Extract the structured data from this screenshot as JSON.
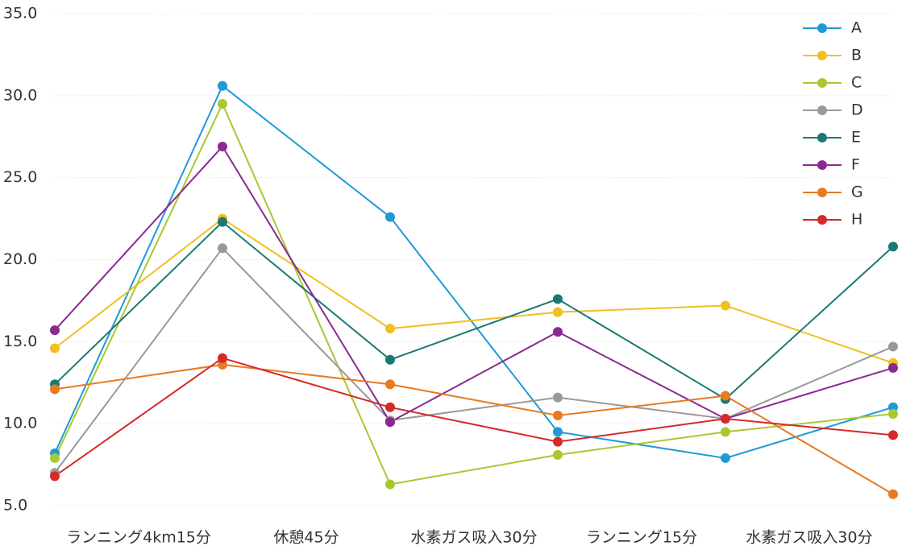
{
  "chart_data": {
    "type": "line",
    "xlim": [
      0,
      5
    ],
    "xticks": [
      {
        "value": 0.5,
        "label": "ランニング4km15分"
      },
      {
        "value": 1.5,
        "label": "休憩45分"
      },
      {
        "value": 2.5,
        "label": "水素ガス吸入30分"
      },
      {
        "value": 3.5,
        "label": "ランニング15分"
      },
      {
        "value": 4.5,
        "label": "水素ガス吸入30分"
      }
    ],
    "x": [
      0,
      1,
      2,
      3,
      4,
      5
    ],
    "ylim": [
      5,
      35
    ],
    "yticks": [
      {
        "value": 5,
        "label": "5.0"
      },
      {
        "value": 10,
        "label": "10.0"
      },
      {
        "value": 15,
        "label": "15.0"
      },
      {
        "value": 20,
        "label": "20.0"
      },
      {
        "value": 25,
        "label": "25.0"
      },
      {
        "value": 30,
        "label": "30.0"
      },
      {
        "value": 35,
        "label": "35.0"
      }
    ],
    "grid": true,
    "legend": "top-right",
    "series": [
      {
        "name": "A",
        "color": "#1e9ad6",
        "values": [
          8.2,
          30.6,
          22.6,
          9.5,
          7.9,
          11.0
        ]
      },
      {
        "name": "B",
        "color": "#f0c020",
        "values": [
          14.6,
          22.5,
          15.8,
          16.8,
          17.2,
          13.7
        ]
      },
      {
        "name": "C",
        "color": "#a8c830",
        "values": [
          7.9,
          29.5,
          6.3,
          8.1,
          9.5,
          10.6
        ]
      },
      {
        "name": "D",
        "color": "#999999",
        "values": [
          7.0,
          20.7,
          10.2,
          11.6,
          10.3,
          14.7
        ]
      },
      {
        "name": "E",
        "color": "#1a7a72",
        "values": [
          12.4,
          22.3,
          13.9,
          17.6,
          11.5,
          20.8
        ]
      },
      {
        "name": "F",
        "color": "#8a2a90",
        "values": [
          15.7,
          26.9,
          10.1,
          15.6,
          10.3,
          13.4
        ]
      },
      {
        "name": "G",
        "color": "#e87a20",
        "values": [
          12.1,
          13.6,
          12.4,
          10.5,
          11.7,
          5.7
        ]
      },
      {
        "name": "H",
        "color": "#d42a2a",
        "values": [
          6.8,
          14.0,
          11.0,
          8.9,
          10.3,
          9.3
        ]
      }
    ]
  }
}
